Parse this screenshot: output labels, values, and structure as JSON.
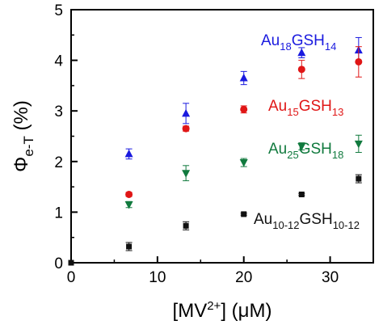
{
  "colors": {
    "axis": "#000000",
    "Au18GSH14": "#1a1adf",
    "Au15GSH13": "#e01616",
    "Au25GSH18": "#117a3e",
    "Au10-12GSH10-12": "#111111"
  },
  "chart_data": {
    "type": "scatter",
    "xlim": [
      0,
      35
    ],
    "ylim": [
      0,
      5
    ],
    "x_ticks": [
      "0",
      "10",
      "20",
      "30"
    ],
    "y_ticks": [
      "0",
      "1",
      "2",
      "3",
      "4",
      "5"
    ],
    "xlabel": {
      "main": "[MV",
      "sup": "2+",
      "rest": "] (μM)"
    },
    "ylabel": {
      "main": "Φ",
      "sub": "e-T",
      "rest": " (%)"
    },
    "series": [
      {
        "key": "Au18GSH14",
        "label": {
          "a": "Au",
          "b": "18",
          "c": "GSH",
          "d": "14"
        },
        "marker": "triangle-up",
        "points": [
          {
            "x": 6.7,
            "y": 2.15,
            "err": 0.1
          },
          {
            "x": 13.3,
            "y": 2.95,
            "err": 0.2
          },
          {
            "x": 20,
            "y": 3.65,
            "err": 0.13
          },
          {
            "x": 26.7,
            "y": 4.15,
            "err": 0.1
          },
          {
            "x": 33.3,
            "y": 4.2,
            "err": 0.25
          }
        ]
      },
      {
        "key": "Au15GSH13",
        "label": {
          "a": "Au",
          "b": "15",
          "c": "GSH",
          "d": "13"
        },
        "marker": "circle",
        "points": [
          {
            "x": 6.7,
            "y": 1.35,
            "err": 0.04
          },
          {
            "x": 13.3,
            "y": 2.65,
            "err": 0.05
          },
          {
            "x": 20,
            "y": 3.03,
            "err": 0.07
          },
          {
            "x": 26.7,
            "y": 3.82,
            "err": 0.18
          },
          {
            "x": 33.3,
            "y": 3.97,
            "err": 0.3
          }
        ]
      },
      {
        "key": "Au25GSH18",
        "label": {
          "a": "Au",
          "b": "25",
          "c": "GSH",
          "d": "18"
        },
        "marker": "triangle-down",
        "points": [
          {
            "x": 6.7,
            "y": 1.15,
            "err": 0.06
          },
          {
            "x": 13.3,
            "y": 1.77,
            "err": 0.15
          },
          {
            "x": 20,
            "y": 1.98,
            "err": 0.08
          },
          {
            "x": 26.7,
            "y": 2.3,
            "err": 0.07
          },
          {
            "x": 33.3,
            "y": 2.35,
            "err": 0.17
          }
        ]
      },
      {
        "key": "Au10-12GSH10-12",
        "label": {
          "a": "Au",
          "b": "10-12",
          "c": "GSH",
          "d": "10-12"
        },
        "marker": "square",
        "points": [
          {
            "x": 0,
            "y": 0,
            "err": 0
          },
          {
            "x": 6.7,
            "y": 0.32,
            "err": 0.08
          },
          {
            "x": 13.3,
            "y": 0.73,
            "err": 0.08
          },
          {
            "x": 20,
            "y": 0.96,
            "err": 0.02
          },
          {
            "x": 26.7,
            "y": 1.35,
            "err": 0.02
          },
          {
            "x": 33.3,
            "y": 1.66,
            "err": 0.08
          }
        ]
      }
    ]
  }
}
